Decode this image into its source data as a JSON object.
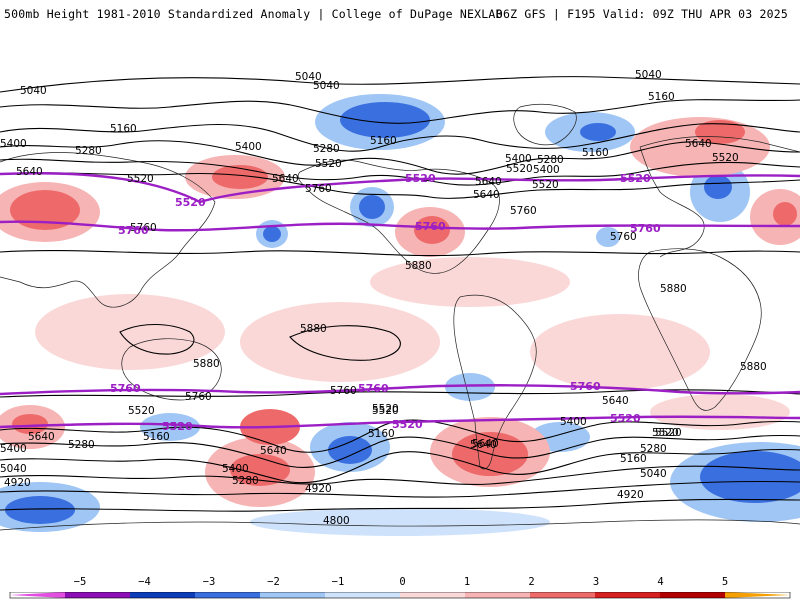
{
  "header": {
    "left": "500mb Height 1981-2010 Standardized Anomaly | College of DuPage NEXLAB",
    "right": "06Z GFS | F195 Valid: 09Z THU APR 03 2025"
  },
  "colors": {
    "neg5": "#e14ee0",
    "neg4": "#8b0fb5",
    "neg3": "#0d3db8",
    "neg2": "#3a6fe0",
    "neg1": "#9fc6f5",
    "neg05": "#cfe2fb",
    "pos05": "#fbd8d8",
    "pos1": "#f7b4b4",
    "pos2": "#ee6a6a",
    "pos3": "#d62020",
    "pos4": "#b30000",
    "pos5": "#f5a000",
    "contour": "#000000",
    "highlight_contour": "#9b1fc4"
  },
  "colorbar": {
    "ticks": [
      "−5",
      "−4",
      "−3",
      "−2",
      "−1",
      "0",
      "1",
      "2",
      "3",
      "4",
      "5"
    ]
  },
  "contour_labels": [
    {
      "text": "5040"
    },
    {
      "text": "5040"
    },
    {
      "text": "5040"
    },
    {
      "text": "5040"
    },
    {
      "text": "5160"
    },
    {
      "text": "5160"
    },
    {
      "text": "5160"
    },
    {
      "text": "5160"
    },
    {
      "text": "5400"
    },
    {
      "text": "5400"
    },
    {
      "text": "5400"
    },
    {
      "text": "5280"
    },
    {
      "text": "5280"
    },
    {
      "text": "5280"
    },
    {
      "text": "5520"
    },
    {
      "text": "5520"
    },
    {
      "text": "5520"
    },
    {
      "text": "5640"
    },
    {
      "text": "5640"
    },
    {
      "text": "5640"
    },
    {
      "text": "5640"
    },
    {
      "text": "5760"
    },
    {
      "text": "5760"
    },
    {
      "text": "5760"
    },
    {
      "text": "5880"
    },
    {
      "text": "5880"
    },
    {
      "text": "5880"
    },
    {
      "text": "5880"
    },
    {
      "text": "5880"
    },
    {
      "text": "4920"
    },
    {
      "text": "4920"
    },
    {
      "text": "4920"
    },
    {
      "text": "4800"
    },
    {
      "text": "5520"
    },
    {
      "text": "5520"
    },
    {
      "text": "5520"
    },
    {
      "text": "5520"
    },
    {
      "text": "5640"
    },
    {
      "text": "5520"
    },
    {
      "text": "5400"
    },
    {
      "text": "5640"
    },
    {
      "text": "5760"
    },
    {
      "text": "5760"
    },
    {
      "text": "5760"
    },
    {
      "text": "5640"
    },
    {
      "text": "5520"
    },
    {
      "text": "5280"
    },
    {
      "text": "5160"
    },
    {
      "text": "5040"
    },
    {
      "text": "5400"
    },
    {
      "text": "5280"
    },
    {
      "text": "5160"
    },
    {
      "text": "5040"
    },
    {
      "text": "5280"
    },
    {
      "text": "5400"
    },
    {
      "text": "5640"
    },
    {
      "text": "5640"
    },
    {
      "text": "5520"
    },
    {
      "text": "5160"
    },
    {
      "text": "5400"
    },
    {
      "text": "5640"
    }
  ],
  "highlight_labels": [
    {
      "text": "5520"
    },
    {
      "text": "5520"
    },
    {
      "text": "5520"
    },
    {
      "text": "5760"
    },
    {
      "text": "5760"
    },
    {
      "text": "5760"
    },
    {
      "text": "5760"
    },
    {
      "text": "5760"
    },
    {
      "text": "5760"
    },
    {
      "text": "5520"
    },
    {
      "text": "5520"
    },
    {
      "text": "5520"
    }
  ]
}
